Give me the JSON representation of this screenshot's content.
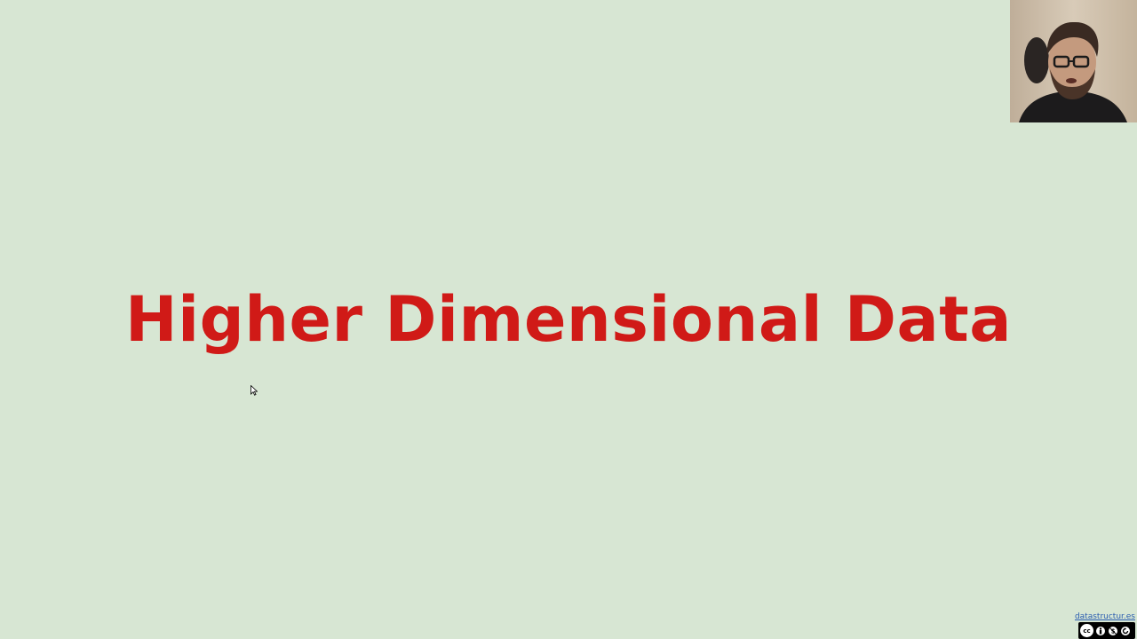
{
  "slide": {
    "title": "Higher Dimensional Data",
    "background_color": "#d7e6d3",
    "title_color": "#d01a17"
  },
  "webcam": {
    "content": "presenter-video"
  },
  "footer": {
    "site_link": "datastructur.es",
    "license_badge_icons": [
      "cc-icon",
      "by-icon",
      "nc-icon",
      "sa-icon"
    ]
  },
  "cursor": {
    "icon": "mouse-pointer-icon"
  }
}
